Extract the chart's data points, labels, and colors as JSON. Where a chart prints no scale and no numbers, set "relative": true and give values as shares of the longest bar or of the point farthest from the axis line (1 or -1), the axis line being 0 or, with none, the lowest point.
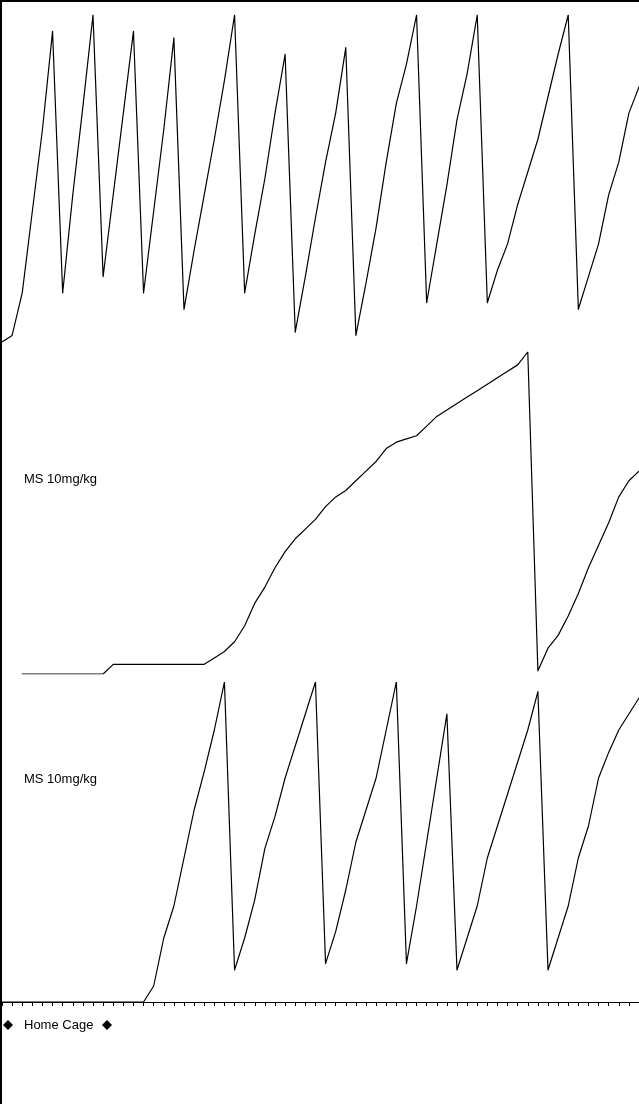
{
  "chart_data": [
    {
      "type": "line",
      "relative": true,
      "color": "#000000",
      "tick_labels": false,
      "marker": "none",
      "line_style": "solid",
      "categories": [
        null,
        null,
        null,
        null,
        null,
        null,
        null,
        null,
        null,
        null,
        null,
        null,
        null,
        null,
        null,
        null,
        null,
        null,
        null,
        null,
        null,
        null,
        null,
        null,
        null,
        null,
        null,
        null,
        null,
        null,
        null,
        null,
        null,
        null,
        null,
        null,
        null,
        null,
        null,
        null,
        null,
        null,
        null,
        null,
        null,
        null,
        null,
        null,
        null,
        null,
        null,
        null,
        null,
        null,
        null,
        null,
        null,
        null,
        null,
        null,
        null,
        null,
        null,
        null
      ],
      "values": [
        0.0,
        0.02,
        0.15,
        0.4,
        0.65,
        0.95,
        0.15,
        0.45,
        0.72,
        1.0,
        0.2,
        0.45,
        0.7,
        0.95,
        0.15,
        0.4,
        0.65,
        0.93,
        0.1,
        0.28,
        0.45,
        0.62,
        0.8,
        1.0,
        0.15,
        0.33,
        0.5,
        0.7,
        0.88,
        0.03,
        0.2,
        0.38,
        0.55,
        0.7,
        0.9,
        0.02,
        0.18,
        0.35,
        0.55,
        0.73,
        0.85,
        1.0,
        0.12,
        0.3,
        0.48,
        0.68,
        0.82,
        1.0,
        0.12,
        0.22,
        0.3,
        0.42,
        0.52,
        0.62,
        0.75,
        0.88,
        1.0,
        0.1,
        0.2,
        0.3,
        0.45,
        0.55,
        0.7,
        0.78
      ]
    },
    {
      "type": "line",
      "relative": true,
      "color": "#000000",
      "tick_labels": false,
      "marker": "none",
      "line_style": "solid",
      "annotations": [
        "MS 10mg/kg"
      ],
      "categories": [
        null,
        null,
        null,
        null,
        null,
        null,
        null,
        null,
        null,
        null,
        null,
        null,
        null,
        null,
        null,
        null,
        null,
        null,
        null,
        null,
        null,
        null,
        null,
        null,
        null,
        null,
        null,
        null,
        null,
        null,
        null,
        null,
        null,
        null,
        null,
        null,
        null,
        null,
        null,
        null,
        null,
        null,
        null,
        null,
        null,
        null,
        null,
        null,
        null,
        null,
        null,
        null,
        null,
        null,
        null,
        null,
        null,
        null,
        null,
        null,
        null,
        null,
        null,
        null
      ],
      "values": [
        null,
        null,
        0,
        0,
        0,
        0,
        0,
        0,
        0,
        0,
        0,
        0.03,
        0.03,
        0.03,
        0.03,
        0.03,
        0.03,
        0.03,
        0.03,
        0.03,
        0.03,
        0.05,
        0.07,
        0.1,
        0.15,
        0.22,
        0.27,
        0.33,
        0.38,
        0.42,
        0.45,
        0.48,
        0.52,
        0.55,
        0.57,
        0.6,
        0.63,
        0.66,
        0.7,
        0.72,
        0.73,
        0.74,
        0.77,
        0.8,
        0.82,
        0.84,
        0.86,
        0.88,
        0.9,
        0.92,
        0.94,
        0.96,
        1.0,
        0.01,
        0.08,
        0.12,
        0.18,
        0.25,
        0.33,
        0.4,
        0.47,
        0.55,
        0.6,
        0.63
      ]
    },
    {
      "type": "line",
      "relative": true,
      "color": "#000000",
      "tick_labels": false,
      "marker": "none",
      "line_style": "solid",
      "annotations": [
        "MS 10mg/kg",
        "Home Cage"
      ],
      "categories": [
        null,
        null,
        null,
        null,
        null,
        null,
        null,
        null,
        null,
        null,
        null,
        null,
        null,
        null,
        null,
        null,
        null,
        null,
        null,
        null,
        null,
        null,
        null,
        null,
        null,
        null,
        null,
        null,
        null,
        null,
        null,
        null,
        null,
        null,
        null,
        null,
        null,
        null,
        null,
        null,
        null,
        null,
        null,
        null,
        null,
        null,
        null,
        null,
        null,
        null,
        null,
        null,
        null,
        null,
        null,
        null,
        null,
        null,
        null,
        null,
        null,
        null,
        null,
        null
      ],
      "values": [
        0,
        0,
        0,
        0,
        0,
        0,
        0,
        0,
        0,
        0,
        0,
        0,
        0,
        0,
        0,
        0.05,
        0.2,
        0.3,
        0.45,
        0.6,
        0.72,
        0.85,
        1.0,
        0.1,
        0.2,
        0.32,
        0.48,
        0.58,
        0.7,
        0.8,
        0.9,
        1.0,
        0.12,
        0.22,
        0.35,
        0.5,
        0.6,
        0.7,
        0.85,
        1.0,
        0.12,
        0.3,
        0.5,
        0.7,
        0.9,
        0.1,
        0.2,
        0.3,
        0.45,
        0.55,
        0.65,
        0.75,
        0.85,
        0.97,
        0.1,
        0.2,
        0.3,
        0.45,
        0.55,
        0.7,
        0.78,
        0.85,
        0.9,
        0.95
      ]
    }
  ]
}
